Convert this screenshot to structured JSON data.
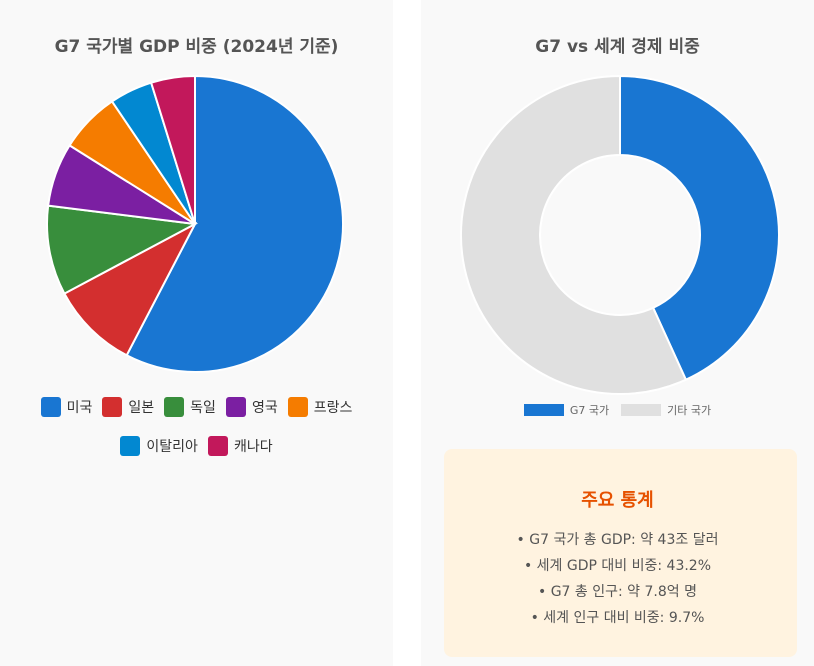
{
  "chart_data": [
    {
      "type": "pie",
      "title": "G7 국가별 GDP 비중 (2024년 기준)",
      "categories": [
        "미국",
        "일본",
        "독일",
        "영국",
        "프랑스",
        "이탈리아",
        "캐나다"
      ],
      "values": [
        56.6,
        9.4,
        9.6,
        6.8,
        6.5,
        4.6,
        4.7
      ],
      "colors": [
        "#1976d2",
        "#d32f2f",
        "#388e3c",
        "#7b1fa2",
        "#f57c00",
        "#0288d1",
        "#c2185b"
      ],
      "legend_position": "bottom"
    },
    {
      "type": "pie",
      "subtype": "doughnut",
      "title": "G7 vs 세계 경제 비중",
      "categories": [
        "G7 국가",
        "기타 국가"
      ],
      "values": [
        43.2,
        56.8
      ],
      "colors": [
        "#1976d2",
        "#e0e0e0"
      ],
      "legend_position": "bottom"
    }
  ],
  "stats": {
    "title": "주요 통계",
    "lines": [
      "• G7 국가 총 GDP: 약 43조 달러",
      "• 세계 GDP 대비 비중: 43.2%",
      "• G7 총 인구: 약 7.8억 명",
      "• 세계 인구 대비 비중: 9.7%"
    ]
  }
}
